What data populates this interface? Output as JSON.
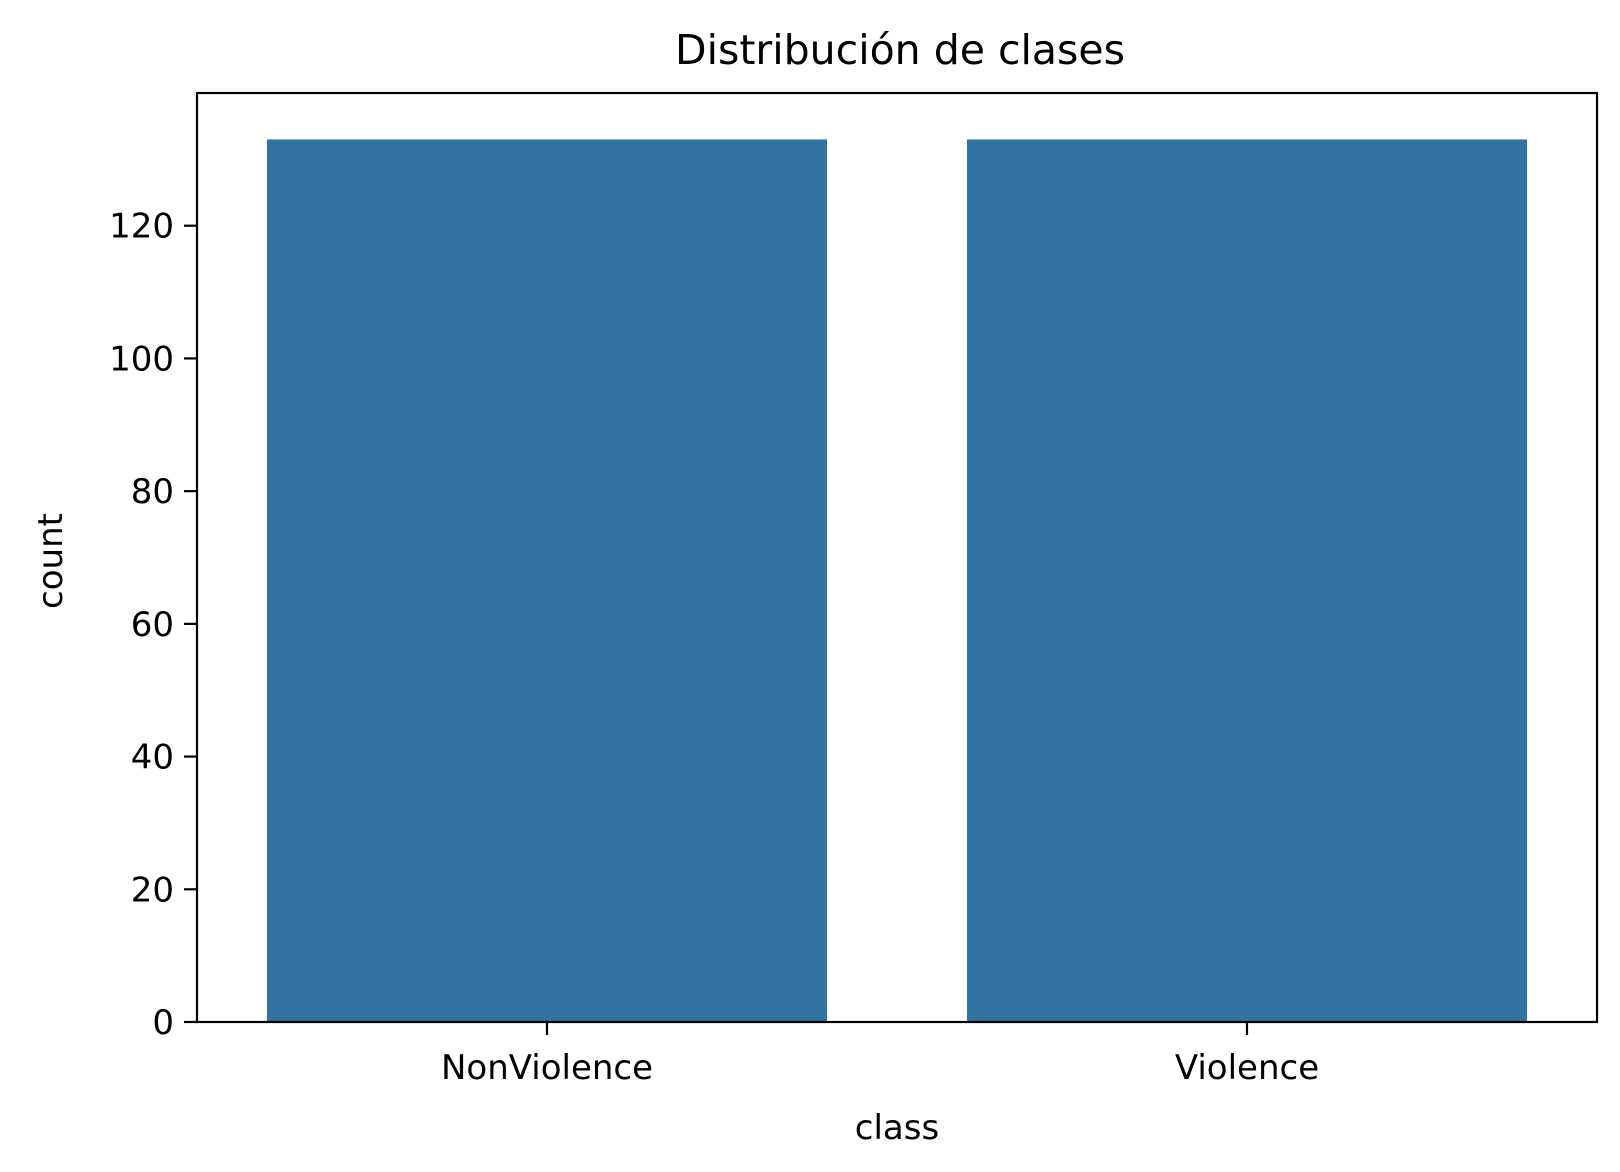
{
  "chart_data": {
    "type": "bar",
    "title": "Distribución de clases",
    "xlabel": "class",
    "ylabel": "count",
    "categories": [
      "NonViolence",
      "Violence"
    ],
    "values": [
      133,
      133
    ],
    "ylim": [
      0,
      140
    ],
    "yticks": [
      0,
      20,
      40,
      60,
      80,
      100,
      120
    ],
    "grid": false,
    "legend": "none",
    "colors": {
      "bar": "#3274a1",
      "axis": "#000000",
      "background": "#ffffff"
    }
  }
}
